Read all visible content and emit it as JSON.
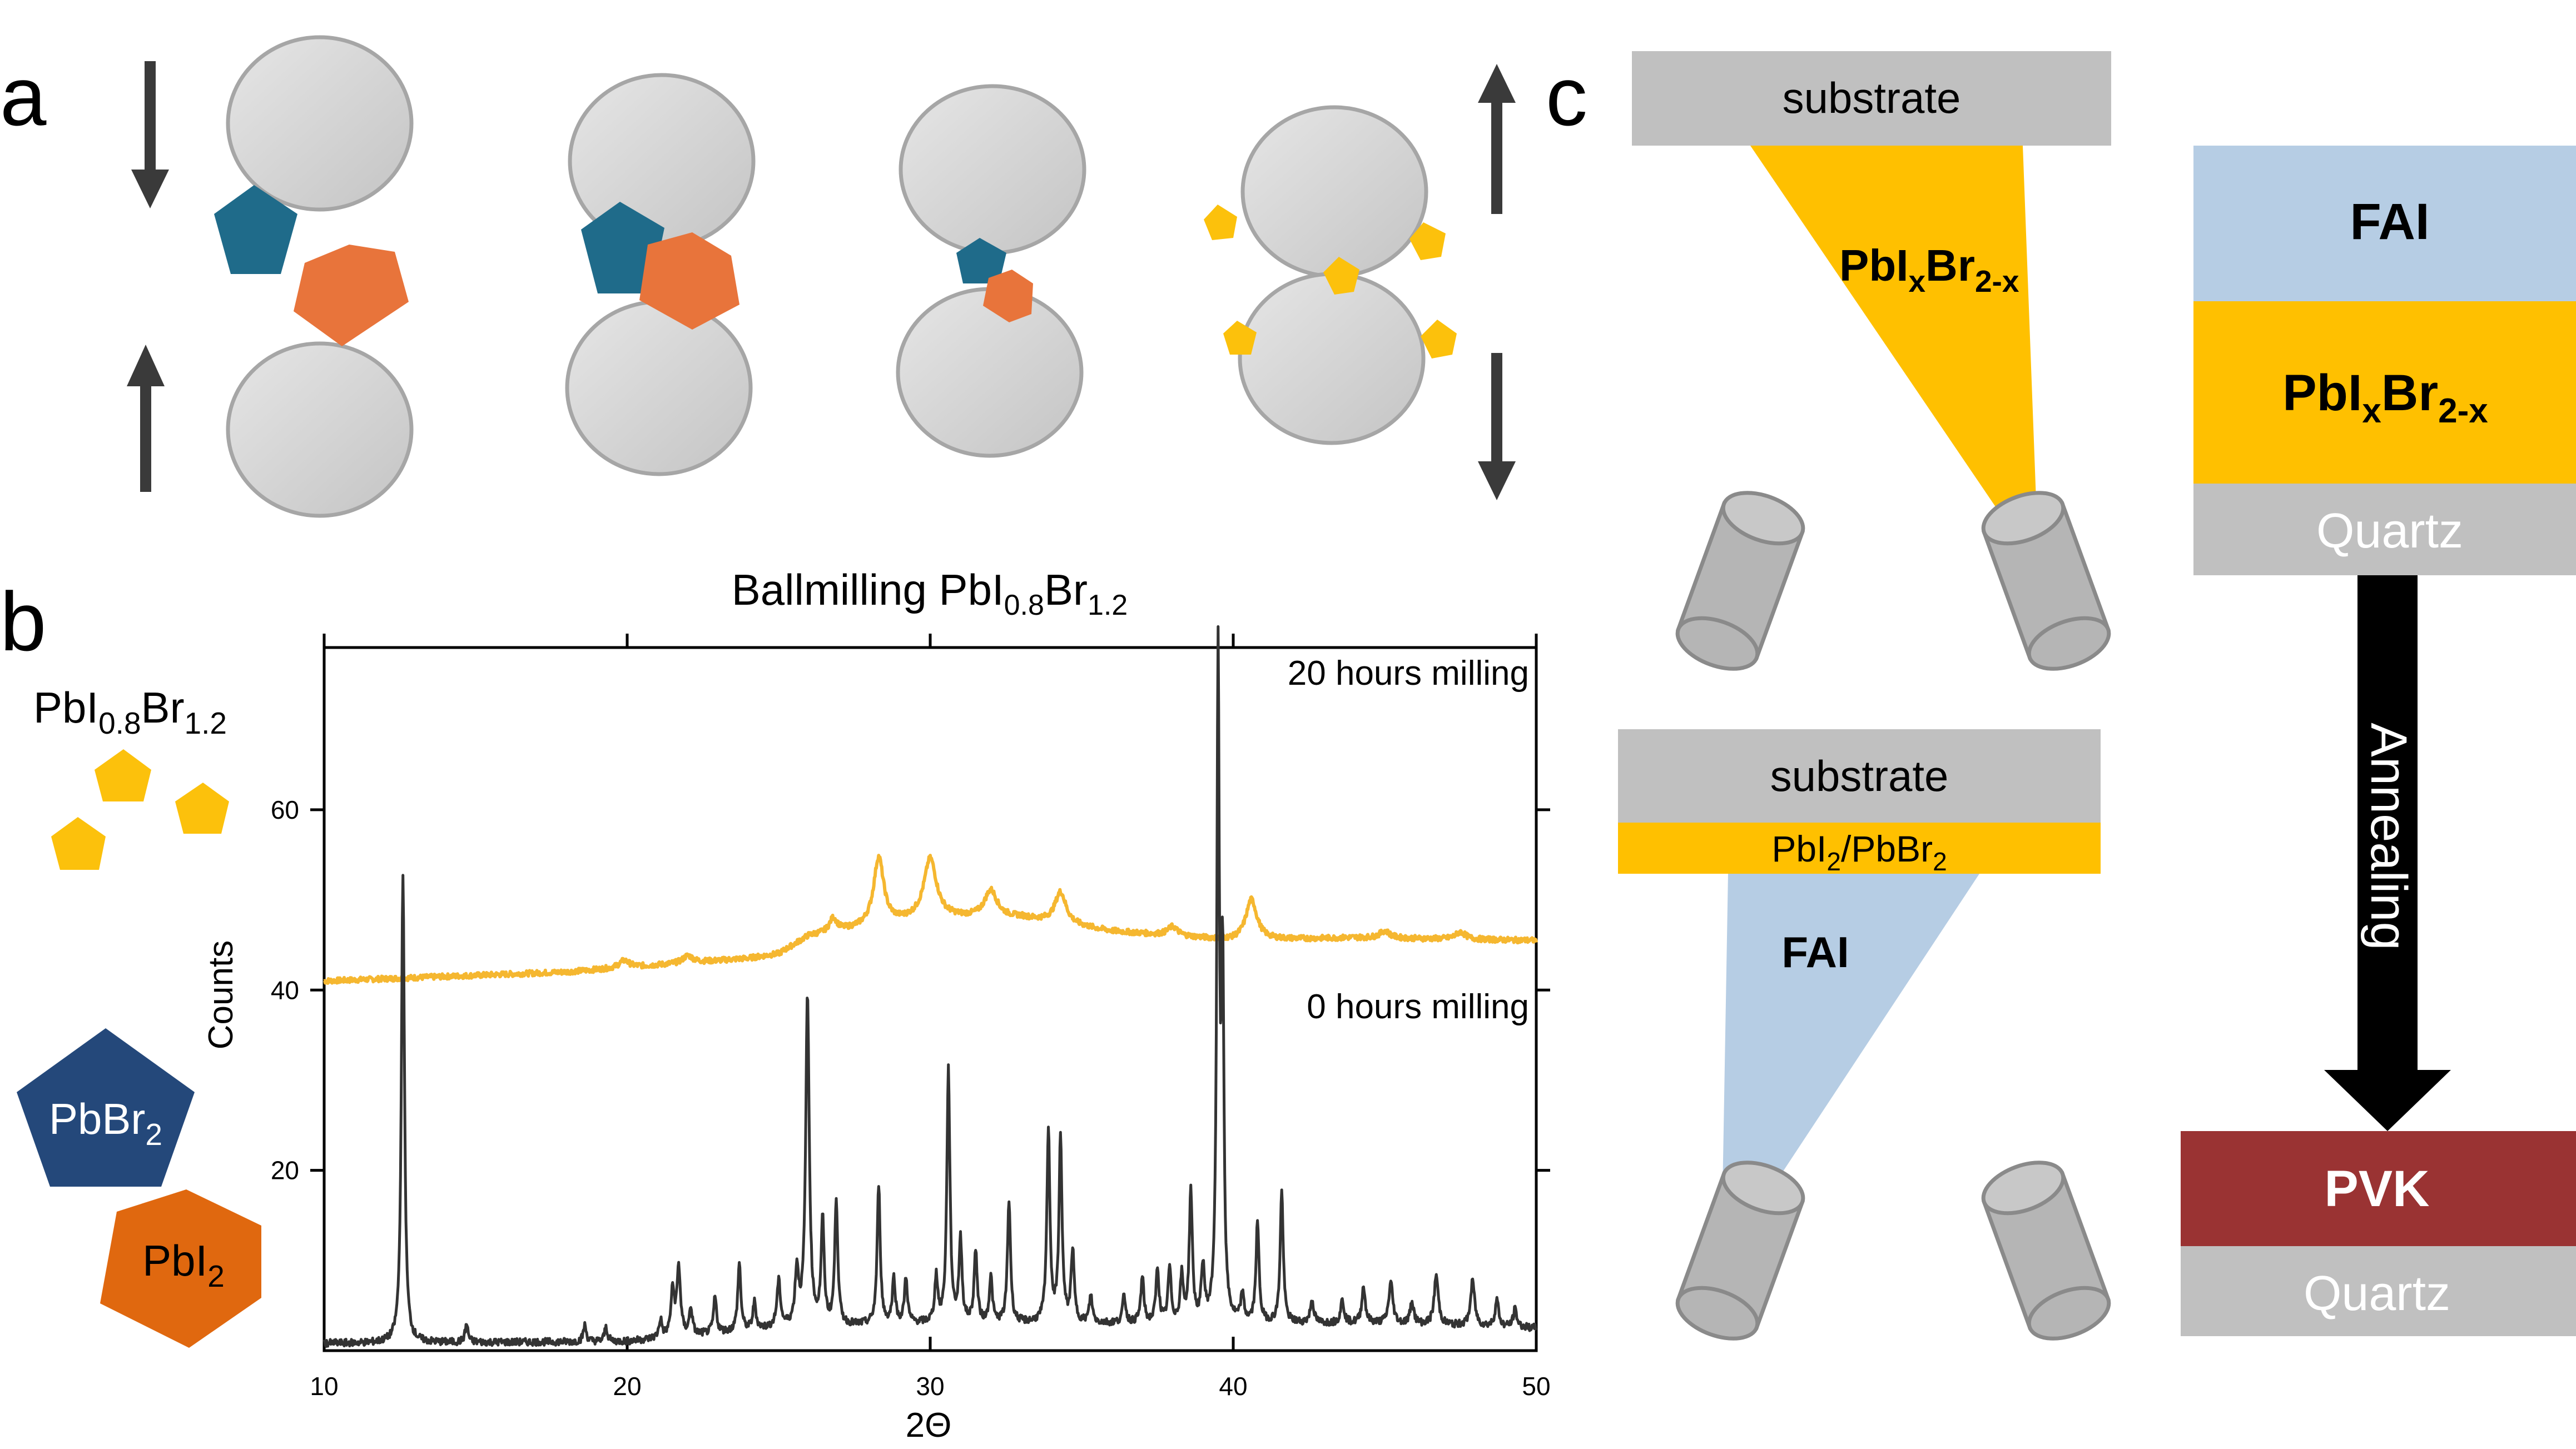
{
  "panel_labels": {
    "a": "a",
    "b": "b",
    "c": "c"
  },
  "panel_b": {
    "legend": {
      "mixed_formula": {
        "base": "PbI",
        "sub1": "0.8",
        "mid": "Br",
        "sub2": "1.2"
      },
      "pbbr2": {
        "base": "PbBr",
        "sub": "2"
      },
      "pbi2": {
        "base": "PbI",
        "sub": "2"
      }
    }
  },
  "chart_data": {
    "type": "line",
    "title": {
      "base": "Ballmilling PbI",
      "sub1": "0.8",
      "mid": "Br",
      "sub2": "1.2"
    },
    "xlabel": "2Θ",
    "ylabel": "Counts",
    "xlim": [
      10,
      50
    ],
    "ylim": [
      0,
      78
    ],
    "x_ticks": [
      10,
      20,
      30,
      40,
      50
    ],
    "y_ticks": [
      20,
      40,
      60
    ],
    "grid": false,
    "annotations": [
      "20 hours milling",
      "0 hours milling"
    ],
    "series": [
      {
        "color": "#f5b730",
        "label": "20 hours milling",
        "baseline": [
          [
            10,
            41.0
          ],
          [
            14,
            41.5
          ],
          [
            18,
            42.0
          ],
          [
            20,
            42.5
          ],
          [
            22,
            43.0
          ],
          [
            24,
            43.5
          ],
          [
            25,
            44.0
          ],
          [
            26,
            46.0
          ],
          [
            28,
            47.0
          ],
          [
            30,
            48.0
          ],
          [
            33,
            48.0
          ],
          [
            36,
            46.5
          ],
          [
            40,
            45.5
          ],
          [
            44,
            45.8
          ],
          [
            50,
            45.5
          ]
        ],
        "peaks": [
          [
            19.9,
            0.8,
            0.2
          ],
          [
            22.0,
            0.8,
            0.2
          ],
          [
            26.8,
            1.5,
            0.15
          ],
          [
            28.3,
            7.5,
            0.2
          ],
          [
            30.0,
            6.5,
            0.25
          ],
          [
            32.0,
            3.0,
            0.25
          ],
          [
            34.3,
            3.5,
            0.22
          ],
          [
            38.0,
            1.0,
            0.2
          ],
          [
            40.6,
            4.5,
            0.22
          ],
          [
            45.0,
            0.8,
            0.2
          ],
          [
            47.5,
            0.8,
            0.2
          ]
        ]
      },
      {
        "color": "#333333",
        "label": "0 hours milling",
        "baseline": [
          [
            10,
            0.8
          ],
          [
            20,
            1.0
          ],
          [
            25,
            2.5
          ],
          [
            30,
            3.0
          ],
          [
            35,
            3.0
          ],
          [
            40,
            3.0
          ],
          [
            45,
            3.0
          ],
          [
            50,
            2.5
          ]
        ],
        "peaks": [
          [
            12.6,
            52.0,
            0.06
          ],
          [
            14.7,
            2.0,
            0.06
          ],
          [
            18.6,
            1.8,
            0.06
          ],
          [
            19.3,
            1.6,
            0.06
          ],
          [
            21.1,
            2.0,
            0.06
          ],
          [
            21.5,
            5.0,
            0.07
          ],
          [
            21.7,
            7.5,
            0.07
          ],
          [
            22.1,
            3.0,
            0.06
          ],
          [
            22.9,
            4.0,
            0.06
          ],
          [
            23.7,
            7.5,
            0.06
          ],
          [
            24.2,
            3.0,
            0.06
          ],
          [
            25.0,
            5.0,
            0.07
          ],
          [
            25.6,
            6.0,
            0.07
          ],
          [
            25.95,
            36.5,
            0.07
          ],
          [
            26.45,
            11.5,
            0.06
          ],
          [
            26.9,
            14.0,
            0.06
          ],
          [
            28.3,
            15.5,
            0.06
          ],
          [
            28.8,
            5.0,
            0.06
          ],
          [
            29.2,
            5.0,
            0.06
          ],
          [
            30.2,
            5.0,
            0.06
          ],
          [
            30.6,
            28.0,
            0.06
          ],
          [
            31.0,
            9.0,
            0.06
          ],
          [
            31.5,
            8.0,
            0.06
          ],
          [
            32.0,
            5.0,
            0.06
          ],
          [
            32.6,
            13.5,
            0.06
          ],
          [
            33.9,
            21.5,
            0.06
          ],
          [
            34.3,
            20.5,
            0.06
          ],
          [
            34.7,
            8.0,
            0.06
          ],
          [
            35.3,
            3.0,
            0.06
          ],
          [
            36.4,
            3.0,
            0.06
          ],
          [
            37.0,
            5.0,
            0.06
          ],
          [
            37.5,
            6.0,
            0.06
          ],
          [
            37.9,
            6.0,
            0.06
          ],
          [
            38.3,
            5.0,
            0.06
          ],
          [
            38.6,
            14.5,
            0.06
          ],
          [
            39.0,
            6.0,
            0.06
          ],
          [
            39.5,
            73.0,
            0.05
          ],
          [
            39.65,
            38.0,
            0.05
          ],
          [
            40.3,
            3.0,
            0.06
          ],
          [
            40.8,
            11.0,
            0.06
          ],
          [
            41.6,
            14.5,
            0.06
          ],
          [
            42.6,
            2.5,
            0.07
          ],
          [
            43.6,
            2.5,
            0.07
          ],
          [
            44.3,
            4.0,
            0.07
          ],
          [
            45.2,
            4.5,
            0.08
          ],
          [
            45.9,
            2.5,
            0.07
          ],
          [
            46.7,
            5.5,
            0.08
          ],
          [
            47.9,
            5.0,
            0.08
          ],
          [
            48.7,
            3.0,
            0.07
          ],
          [
            49.3,
            2.0,
            0.07
          ]
        ]
      }
    ]
  },
  "panel_c": {
    "top_schematic": {
      "substrate_label": "substrate",
      "beam_formula": {
        "base": "PbI",
        "sub1": "x",
        "mid": "Br",
        "sub2": "2-x"
      }
    },
    "bottom_schematic": {
      "substrate_label": "substrate",
      "layer_formula": {
        "a": "PbI",
        "a_sub": "2",
        "sep": "/PbBr",
        "b_sub": "2"
      },
      "beam_label": "FAI"
    },
    "stack_before": {
      "top_layer": "FAI",
      "middle_layer": {
        "base": "PbI",
        "sub1": "x",
        "mid": "Br",
        "sub2": "2-x"
      },
      "bottom_layer": "Quartz"
    },
    "arrow_label": "Annealing",
    "stack_after": {
      "top_layer": "PVK",
      "bottom_layer": "Quartz"
    }
  },
  "colors": {
    "ball_fill": "#d9d9d9",
    "ball_stroke": "#a6a6a6",
    "teal_pentagon": "#1f6b8a",
    "orange_pentagon": "#e8743b",
    "yellow_pentagon": "#fcc10c",
    "pbbr2_pentagon": "#24487a",
    "pbi2_pentagon": "#e0680f",
    "gold": "#ffc000",
    "light_blue": "#b6cde4",
    "gray_block": "#c0c0c0",
    "pvk_red": "#9a3333",
    "arrow_dark": "#3a3a3a"
  }
}
